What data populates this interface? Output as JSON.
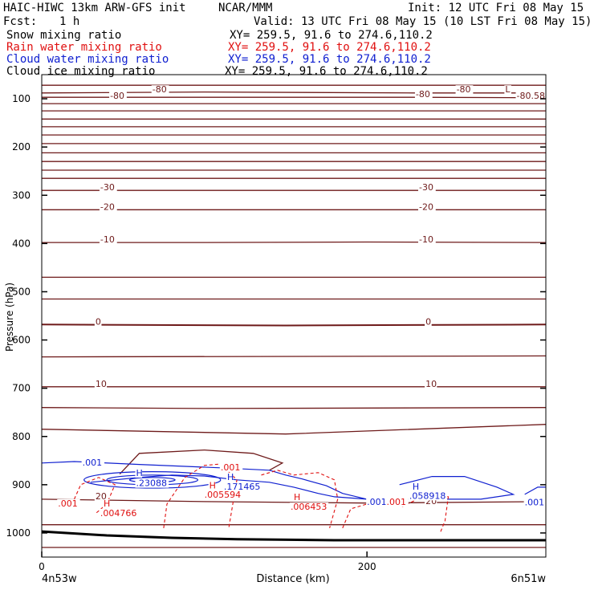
{
  "header": {
    "model_title": "HAIC-HIWC 13km ARW-GFS init",
    "org": "NCAR/MMM",
    "init": "Init: 12 UTC Fri 08 May 15",
    "fcst_label": "Fcst:",
    "fcst_value": "1 h",
    "valid": "Valid: 13 UTC Fri 08 May 15 (10 LST Fri 08 May 15)"
  },
  "legend": [
    {
      "name": "Snow mixing ratio",
      "xy": "XY= 259.5, 91.6 to 274.6,110.2",
      "color": "#000000"
    },
    {
      "name": "Rain water mixing ratio",
      "xy": "XY= 259.5, 91.6 to 274.6,110.2",
      "color": "#e01010"
    },
    {
      "name": "Cloud water mixing ratio",
      "xy": "XY= 259.5, 91.6 to 274.6,110.2",
      "color": "#1020d0"
    },
    {
      "name": "Cloud ice mixing ratio",
      "xy": "XY= 259.5, 91.6 to 274.6,110.2",
      "color": "#000000"
    }
  ],
  "chart_data": {
    "type": "contour-cross-section",
    "ylabel": "Pressure (hPa)",
    "xlabel": "Distance (km)",
    "x_start_label": "4n53w",
    "x_end_label": "6n51w",
    "xlim": [
      0,
      310
    ],
    "ylim": [
      1050,
      50
    ],
    "x_ticks": [
      0,
      200
    ],
    "y_ticks": [
      100,
      200,
      300,
      400,
      500,
      600,
      700,
      800,
      900,
      1000
    ],
    "colors": {
      "temperature": "#6e1a1a",
      "rain": "#e01010",
      "cloud_water": "#1020d0",
      "terrain": "#000000"
    },
    "temperature_contours": [
      {
        "label": "-80",
        "points": [
          [
            0,
            72
          ],
          [
            80,
            72
          ],
          [
            160,
            72
          ],
          [
            240,
            72
          ],
          [
            310,
            72
          ]
        ]
      },
      {
        "label": "-80",
        "points": [
          [
            0,
            88
          ],
          [
            100,
            86
          ],
          [
            230,
            88
          ],
          [
            310,
            88
          ]
        ]
      },
      {
        "label": "-80",
        "points": [
          [
            0,
            97
          ],
          [
            100,
            97
          ],
          [
            230,
            97
          ],
          [
            310,
            98
          ]
        ]
      },
      {
        "label": "",
        "points": [
          [
            0,
            110
          ],
          [
            310,
            110
          ]
        ]
      },
      {
        "label": "",
        "points": [
          [
            0,
            125
          ],
          [
            310,
            125
          ]
        ]
      },
      {
        "label": "",
        "points": [
          [
            0,
            142
          ],
          [
            310,
            142
          ]
        ]
      },
      {
        "label": "",
        "points": [
          [
            0,
            158
          ],
          [
            310,
            158
          ]
        ]
      },
      {
        "label": "",
        "points": [
          [
            0,
            175
          ],
          [
            310,
            175
          ]
        ]
      },
      {
        "label": "",
        "points": [
          [
            0,
            193
          ],
          [
            310,
            193
          ]
        ]
      },
      {
        "label": "",
        "points": [
          [
            0,
            212
          ],
          [
            310,
            212
          ]
        ]
      },
      {
        "label": "",
        "points": [
          [
            0,
            230
          ],
          [
            310,
            230
          ]
        ]
      },
      {
        "label": "",
        "points": [
          [
            0,
            248
          ],
          [
            310,
            248
          ]
        ]
      },
      {
        "label": "",
        "points": [
          [
            0,
            265
          ],
          [
            310,
            265
          ]
        ]
      },
      {
        "label": "-30",
        "points": [
          [
            0,
            290
          ],
          [
            310,
            290
          ]
        ]
      },
      {
        "label": "-20",
        "points": [
          [
            0,
            330
          ],
          [
            310,
            330
          ]
        ]
      },
      {
        "label": "-10",
        "points": [
          [
            0,
            398
          ],
          [
            100,
            398
          ],
          [
            200,
            397
          ],
          [
            310,
            398
          ]
        ]
      },
      {
        "label": "",
        "points": [
          [
            0,
            470
          ],
          [
            310,
            470
          ]
        ]
      },
      {
        "label": "",
        "points": [
          [
            0,
            515
          ],
          [
            310,
            515
          ]
        ]
      },
      {
        "label": "0",
        "points": [
          [
            0,
            568
          ],
          [
            150,
            570
          ],
          [
            310,
            568
          ]
        ]
      },
      {
        "label": "",
        "points": [
          [
            0,
            635
          ],
          [
            310,
            633
          ]
        ]
      },
      {
        "label": "10",
        "points": [
          [
            0,
            697
          ],
          [
            310,
            697
          ]
        ]
      },
      {
        "label": "",
        "points": [
          [
            0,
            740
          ],
          [
            100,
            742
          ],
          [
            310,
            740
          ]
        ]
      },
      {
        "label": "",
        "points": [
          [
            0,
            785
          ],
          [
            150,
            795
          ],
          [
            310,
            775
          ]
        ]
      },
      {
        "label": "20",
        "points": [
          [
            0,
            930
          ],
          [
            100,
            935
          ],
          [
            200,
            938
          ],
          [
            310,
            935
          ]
        ]
      },
      {
        "label": "",
        "points": [
          [
            0,
            983
          ],
          [
            310,
            983
          ]
        ]
      },
      {
        "label": "",
        "points": [
          [
            0,
            1030
          ],
          [
            310,
            1030
          ]
        ]
      }
    ],
    "contour_labels": [
      {
        "text": "-80",
        "x": 68,
        "y": 87
      },
      {
        "text": "-80",
        "x": 42,
        "y": 100
      },
      {
        "text": "-80",
        "x": 255,
        "y": 87
      },
      {
        "text": "-80",
        "x": 230,
        "y": 97
      },
      {
        "text": "-80.58",
        "x": 292,
        "y": 100
      },
      {
        "text": "L",
        "x": 285,
        "y": 87
      },
      {
        "text": "-30",
        "x": 36,
        "y": 290
      },
      {
        "text": "-30",
        "x": 232,
        "y": 290
      },
      {
        "text": "-20",
        "x": 36,
        "y": 330
      },
      {
        "text": "-20",
        "x": 232,
        "y": 330
      },
      {
        "text": "-10",
        "x": 36,
        "y": 398
      },
      {
        "text": "-10",
        "x": 232,
        "y": 398
      },
      {
        "text": "0",
        "x": 33,
        "y": 568
      },
      {
        "text": "0",
        "x": 236,
        "y": 568
      },
      {
        "text": "10",
        "x": 33,
        "y": 697
      },
      {
        "text": "10",
        "x": 236,
        "y": 697
      },
      {
        "text": "20",
        "x": 33,
        "y": 930
      },
      {
        "text": "20",
        "x": 236,
        "y": 940
      }
    ],
    "warm_pocket": [
      [
        48,
        878
      ],
      [
        60,
        835
      ],
      [
        100,
        828
      ],
      [
        130,
        835
      ],
      [
        148,
        855
      ],
      [
        140,
        870
      ]
    ],
    "cloud_water_contours": [
      {
        "points": [
          [
            0,
            855
          ],
          [
            20,
            852
          ],
          [
            60,
            858
          ],
          [
            110,
            865
          ],
          [
            140,
            870
          ],
          [
            150,
            880
          ],
          [
            160,
            888
          ],
          [
            175,
            902
          ],
          [
            185,
            918
          ],
          [
            200,
            930
          ],
          [
            230,
            930
          ]
        ]
      },
      {
        "points": [
          [
            30,
            895
          ],
          [
            60,
            885
          ],
          [
            80,
            880
          ],
          [
            100,
            882
          ],
          [
            120,
            890
          ],
          [
            140,
            895
          ],
          [
            155,
            905
          ],
          [
            170,
            918
          ],
          [
            180,
            925
          ],
          [
            200,
            930
          ]
        ]
      },
      {
        "points": [
          [
            220,
            900
          ],
          [
            240,
            883
          ],
          [
            260,
            883
          ],
          [
            280,
            905
          ],
          [
            290,
            920
          ],
          [
            270,
            930
          ],
          [
            240,
            930
          ],
          [
            230,
            930
          ]
        ]
      },
      {
        "points": [
          [
            297,
            920
          ],
          [
            305,
            905
          ],
          [
            310,
            905
          ]
        ]
      }
    ],
    "cloud_water_closed": [
      {
        "cx": 68,
        "cy": 890,
        "rx": 42,
        "ry": 17
      },
      {
        "cx": 68,
        "cy": 890,
        "rx": 28,
        "ry": 10
      },
      {
        "cx": 68,
        "cy": 890,
        "rx": 14,
        "ry": 5
      }
    ],
    "cloud_water_labels": [
      {
        "text": ".001",
        "x": 25,
        "y": 860
      },
      {
        "text": "H",
        "x": 58,
        "y": 882
      },
      {
        "text": ".23088",
        "x": 58,
        "y": 903
      },
      {
        "text": "H",
        "x": 114,
        "y": 890
      },
      {
        "text": ".171465",
        "x": 112,
        "y": 910
      },
      {
        "text": ".001",
        "x": 200,
        "y": 942
      },
      {
        "text": "H",
        "x": 228,
        "y": 910
      },
      {
        "text": ".058918",
        "x": 226,
        "y": 929
      },
      {
        "text": ".001",
        "x": 297,
        "y": 943
      }
    ],
    "rain_contours": [
      {
        "points": [
          [
            20,
            930
          ],
          [
            24,
            900
          ],
          [
            35,
            885
          ],
          [
            45,
            900
          ],
          [
            40,
            940
          ],
          [
            33,
            960
          ]
        ]
      },
      {
        "points": [
          [
            75,
            990
          ],
          [
            77,
            940
          ],
          [
            88,
            885
          ],
          [
            100,
            860
          ],
          [
            110,
            857
          ],
          [
            120,
            890
          ],
          [
            118,
            930
          ],
          [
            115,
            990
          ]
        ]
      },
      {
        "points": [
          [
            135,
            880
          ],
          [
            145,
            870
          ],
          [
            155,
            880
          ],
          [
            170,
            875
          ],
          [
            180,
            890
          ],
          [
            182,
            930
          ],
          [
            177,
            990
          ]
        ]
      },
      {
        "points": [
          [
            185,
            990
          ],
          [
            190,
            950
          ],
          [
            205,
            935
          ],
          [
            215,
            935
          ],
          [
            222,
            945
          ],
          [
            240,
            915
          ],
          [
            250,
            925
          ],
          [
            248,
            975
          ],
          [
            245,
            1000
          ]
        ]
      }
    ],
    "rain_labels": [
      {
        "text": ".001",
        "x": 110,
        "y": 870
      },
      {
        "text": ".001",
        "x": 10,
        "y": 945
      },
      {
        "text": "H",
        "x": 38,
        "y": 945
      },
      {
        "text": ".004766",
        "x": 36,
        "y": 965
      },
      {
        "text": "H",
        "x": 103,
        "y": 908
      },
      {
        "text": ".005594",
        "x": 100,
        "y": 927
      },
      {
        "text": "H",
        "x": 155,
        "y": 932
      },
      {
        "text": ".006453",
        "x": 153,
        "y": 952
      },
      {
        "text": ".001",
        "x": 212,
        "y": 942
      }
    ],
    "terrain": [
      [
        0,
        997
      ],
      [
        40,
        1005
      ],
      [
        80,
        1010
      ],
      [
        120,
        1013
      ],
      [
        180,
        1015
      ],
      [
        240,
        1015
      ],
      [
        310,
        1015
      ]
    ]
  }
}
